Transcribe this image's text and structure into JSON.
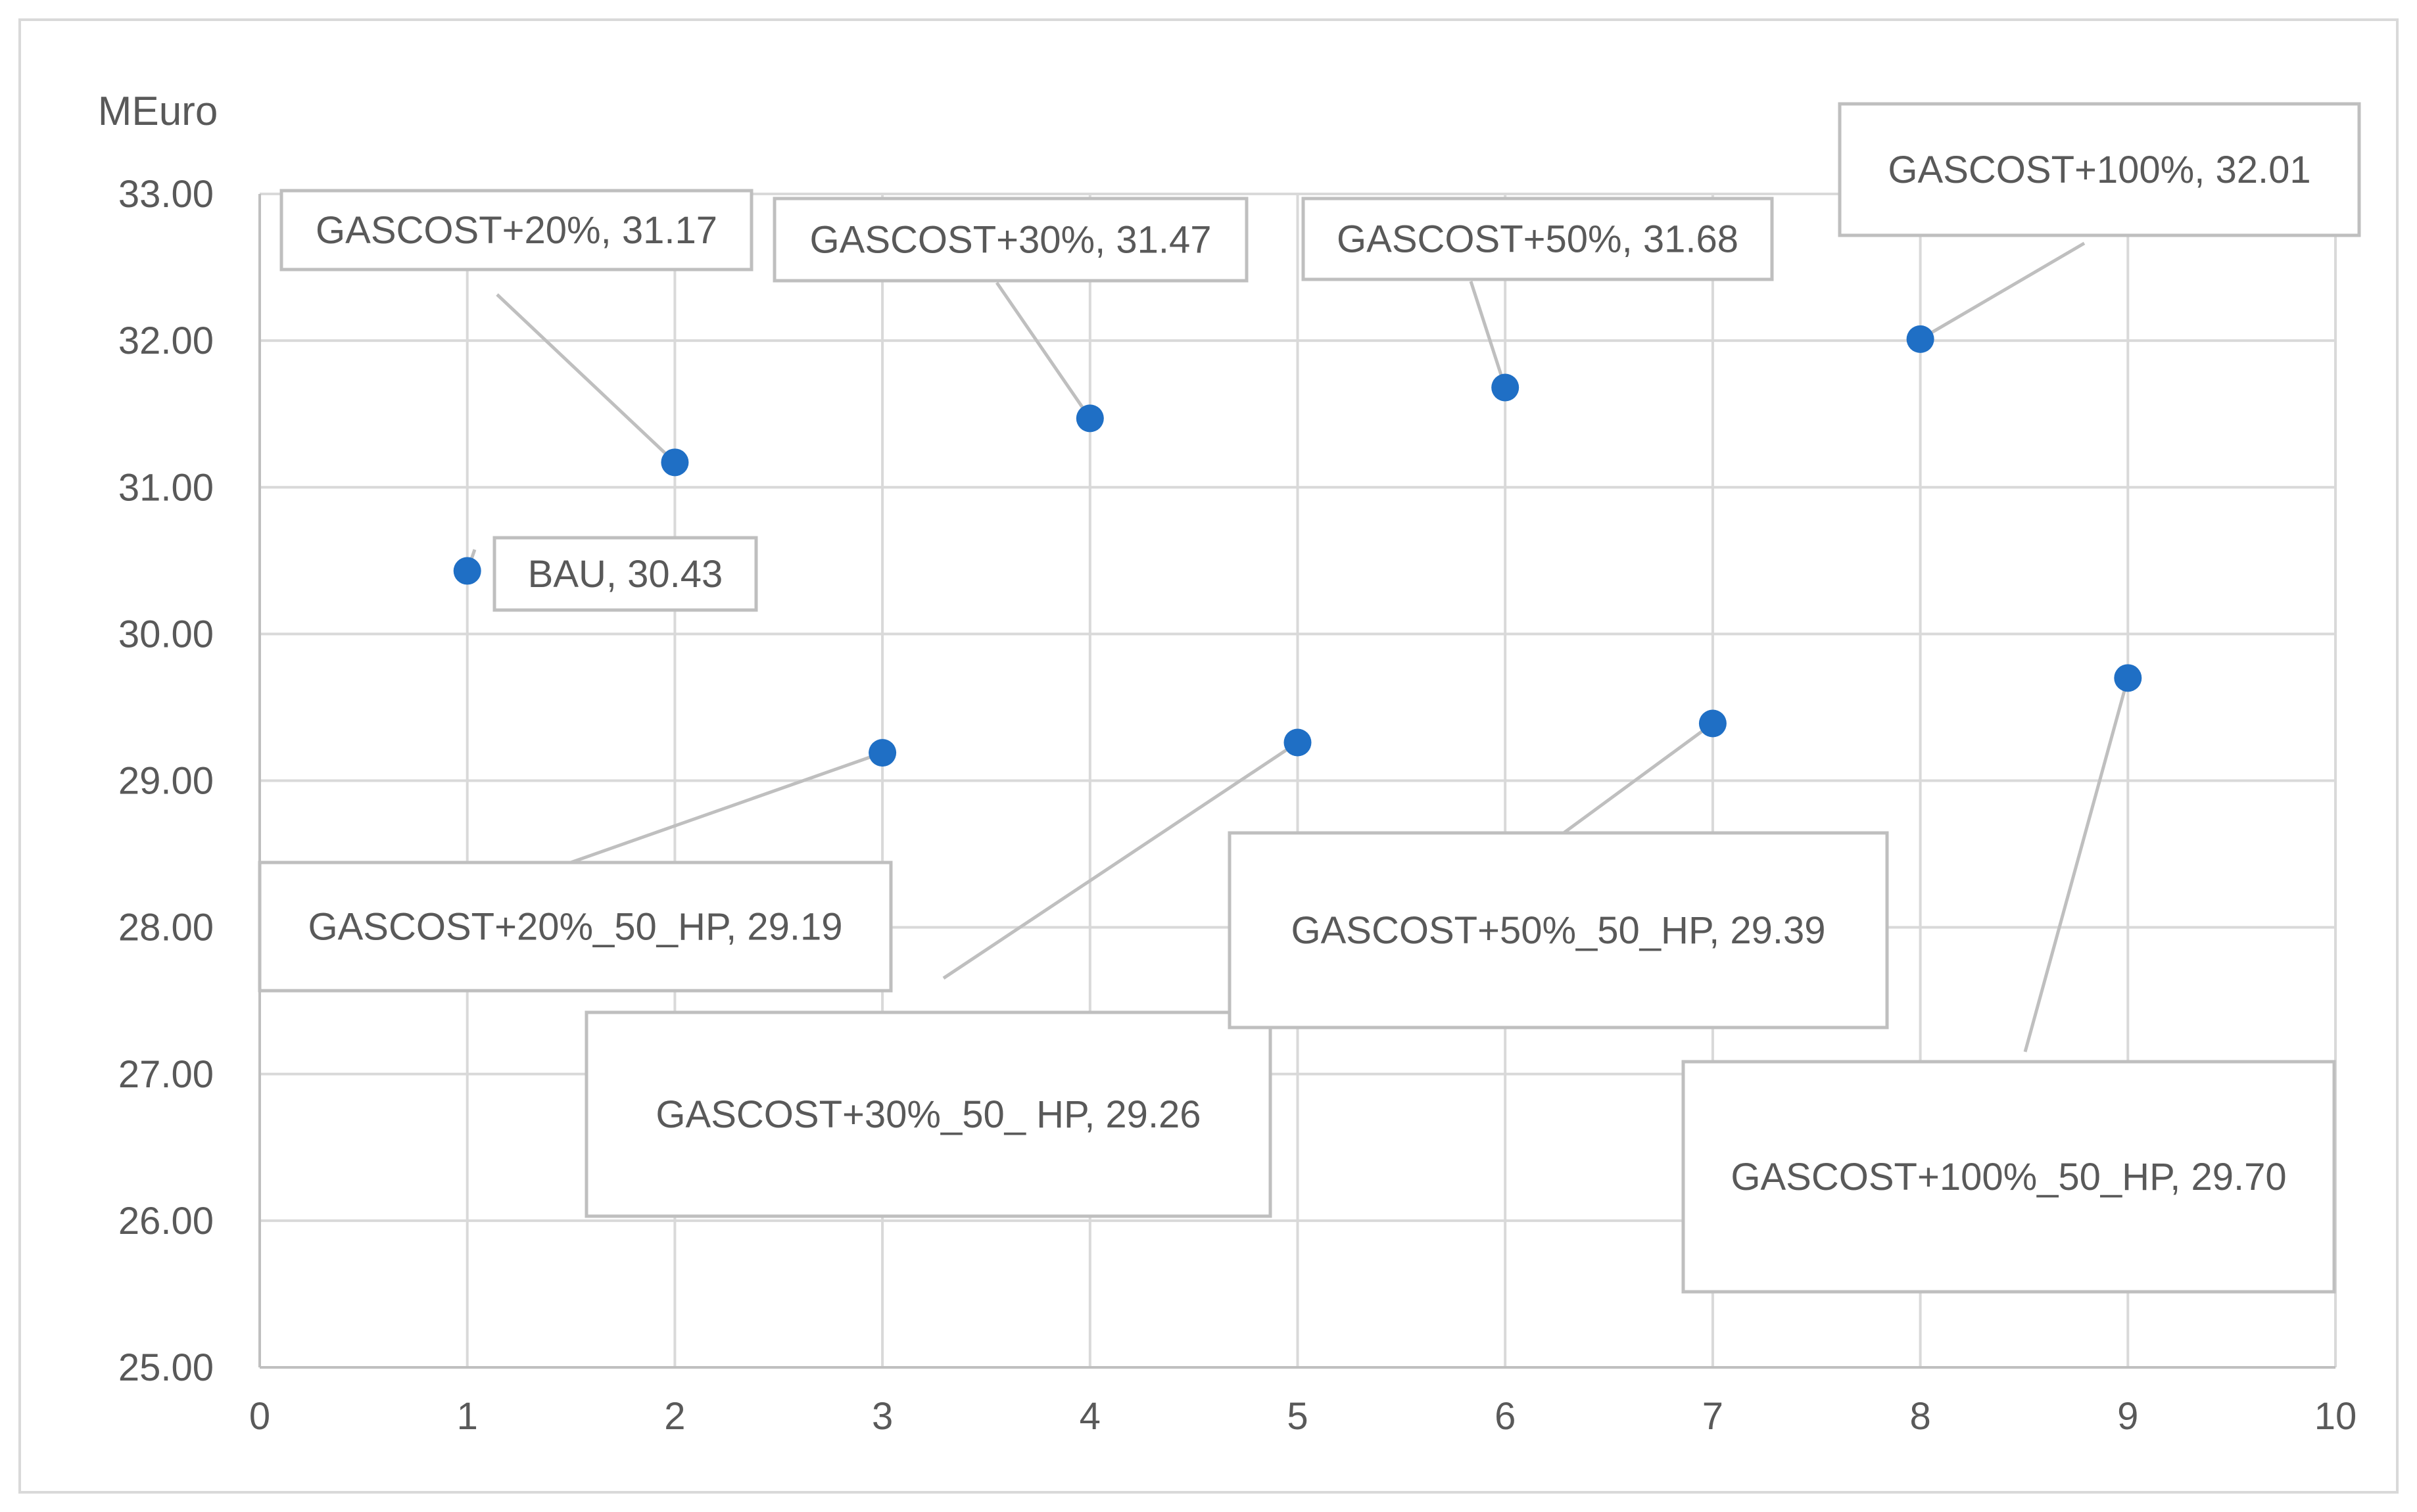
{
  "chart_data": {
    "type": "scatter",
    "title": "",
    "xlabel": "",
    "ylabel": "MEuro",
    "xlim": [
      0,
      10
    ],
    "ylim": [
      25,
      33
    ],
    "x_ticks": [
      "0",
      "1",
      "2",
      "3",
      "4",
      "5",
      "6",
      "7",
      "8",
      "9",
      "10"
    ],
    "y_ticks": [
      "25.00",
      "26.00",
      "27.00",
      "28.00",
      "29.00",
      "30.00",
      "31.00",
      "32.00",
      "33.00"
    ],
    "grid": true,
    "legend": "none",
    "marker_color": "#1f6fc5",
    "points": [
      {
        "x": 1,
        "y": 30.43,
        "label": "BAU, 30.43"
      },
      {
        "x": 2,
        "y": 31.17,
        "label": "GASCOST+20%, 31.17"
      },
      {
        "x": 3,
        "y": 29.19,
        "label": "GASCOST+20%_50_HP, 29.19"
      },
      {
        "x": 4,
        "y": 31.47,
        "label": "GASCOST+30%, 31.47"
      },
      {
        "x": 5,
        "y": 29.26,
        "label": "GASCOST+30%_50_ HP, 29.26"
      },
      {
        "x": 6,
        "y": 31.68,
        "label": "GASCOST+50%, 31.68"
      },
      {
        "x": 7,
        "y": 29.39,
        "label": "GASCOST+50%_50_HP, 29.39"
      },
      {
        "x": 8,
        "y": 32.01,
        "label": "GASCOST+100%, 32.01"
      },
      {
        "x": 9,
        "y": 29.7,
        "label": "GASCOST+100%_50_HP, 29.70"
      }
    ]
  }
}
